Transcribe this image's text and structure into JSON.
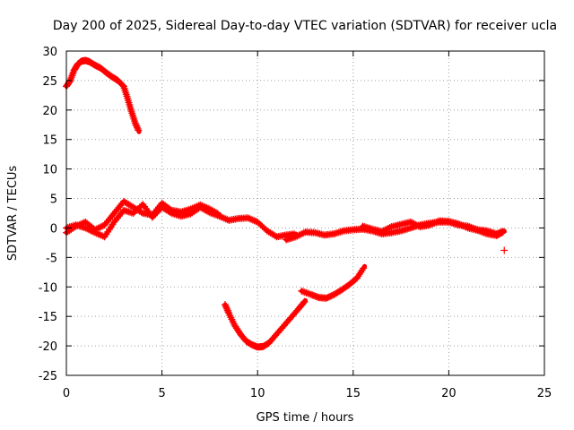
{
  "chart_data": {
    "type": "scatter",
    "title": "Day 200 of 2025, Sidereal Day-to-day VTEC variation (SDTVAR) for receiver ucla",
    "xlabel": "GPS time / hours",
    "ylabel": "SDTVAR / TECUs",
    "xlim": [
      0,
      25
    ],
    "ylim": [
      -25,
      30
    ],
    "x_ticks": [
      0,
      5,
      10,
      15,
      20,
      25
    ],
    "y_ticks": [
      -25,
      -20,
      -15,
      -10,
      -5,
      0,
      5,
      10,
      15,
      20,
      25,
      30
    ],
    "grid": true,
    "marker": "+",
    "series_color": "#ff0000",
    "grid_color": "#a0a0a0",
    "series": [
      {
        "name": "arc-high-start",
        "x": [
          0.0,
          0.2,
          0.4,
          0.6,
          0.8,
          1.0,
          1.2,
          1.5,
          1.8,
          2.1,
          2.4,
          2.7,
          3.0,
          3.2,
          3.4,
          3.6,
          3.8
        ],
        "y": [
          24.0,
          25.0,
          26.7,
          27.8,
          28.3,
          28.4,
          28.2,
          27.6,
          27.1,
          26.3,
          25.6,
          25.0,
          24.0,
          22.0,
          19.8,
          17.8,
          16.3
        ]
      },
      {
        "name": "band-near-zero-a",
        "x": [
          0.0,
          0.5,
          1.0,
          1.5,
          2.0,
          2.5,
          3.0,
          3.5,
          4.0,
          4.5,
          5.0,
          5.5,
          6.0,
          6.5,
          7.0,
          7.5,
          8.0,
          8.5,
          9.0,
          9.5,
          10.0,
          10.5,
          11.0,
          11.5,
          12.0
        ],
        "y": [
          0.0,
          0.5,
          0.0,
          -0.8,
          -1.5,
          1.0,
          3.0,
          2.5,
          4.0,
          1.8,
          3.5,
          2.5,
          2.0,
          2.4,
          3.5,
          2.6,
          2.0,
          1.3,
          1.6,
          1.7,
          1.0,
          -0.5,
          -1.5,
          -1.2,
          -1.0
        ]
      },
      {
        "name": "band-near-zero-b",
        "x": [
          0.0,
          0.5,
          1.0,
          1.5,
          2.0,
          2.5,
          3.0,
          3.5,
          4.0,
          4.5,
          5.0,
          5.5,
          6.0,
          6.5,
          7.0,
          7.5,
          8.0
        ],
        "y": [
          -0.8,
          0.3,
          1.0,
          -0.3,
          0.5,
          2.5,
          4.5,
          3.5,
          2.5,
          2.2,
          4.2,
          3.0,
          2.7,
          3.2,
          3.9,
          3.2,
          2.3
        ]
      },
      {
        "name": "band-near-zero-c",
        "x": [
          11.5,
          12.0,
          12.5,
          13.0,
          13.5,
          14.0,
          14.5,
          15.0,
          15.5,
          16.0,
          16.5,
          17.0,
          17.5,
          18.0,
          18.5,
          19.0,
          19.5,
          20.0,
          20.5,
          21.0,
          21.5,
          22.0,
          22.5,
          22.9
        ],
        "y": [
          -2.0,
          -1.5,
          -0.7,
          -0.8,
          -1.2,
          -1.0,
          -0.5,
          -0.3,
          -0.2,
          -0.5,
          -1.0,
          -0.8,
          -0.5,
          0.0,
          0.5,
          0.8,
          1.0,
          1.0,
          0.5,
          0.3,
          -0.3,
          -0.5,
          -1.0,
          -0.5
        ]
      },
      {
        "name": "band-near-zero-d",
        "x": [
          15.5,
          16.0,
          16.5,
          17.0,
          17.5,
          18.0,
          18.5,
          19.0,
          19.5,
          20.0,
          20.5,
          21.0,
          21.5,
          22.0,
          22.5,
          22.9
        ],
        "y": [
          0.3,
          -0.2,
          -0.6,
          0.2,
          0.6,
          1.0,
          0.2,
          0.5,
          1.2,
          1.1,
          0.7,
          0.0,
          -0.4,
          -1.0,
          -1.3,
          -0.6
        ]
      },
      {
        "name": "arc-low",
        "x": [
          8.3,
          8.5,
          8.8,
          9.1,
          9.4,
          9.7,
          10.0,
          10.3,
          10.6,
          11.0,
          11.4,
          11.8,
          12.2,
          12.5
        ],
        "y": [
          -13.0,
          -14.5,
          -16.5,
          -18.0,
          -19.2,
          -19.8,
          -20.2,
          -20.1,
          -19.5,
          -18.0,
          -16.5,
          -15.0,
          -13.5,
          -12.3
        ]
      },
      {
        "name": "arc-rising-end",
        "x": [
          12.3,
          12.8,
          13.2,
          13.6,
          14.0,
          14.4,
          14.8,
          15.2,
          15.6
        ],
        "y": [
          -10.7,
          -11.3,
          -11.8,
          -11.9,
          -11.3,
          -10.5,
          -9.6,
          -8.5,
          -6.5
        ]
      },
      {
        "name": "outlier",
        "x": [
          22.9
        ],
        "y": [
          -3.8
        ]
      }
    ]
  }
}
